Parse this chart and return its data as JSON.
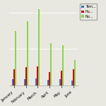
{
  "categories": [
    "January",
    "February",
    "March",
    "April",
    "May",
    "June"
  ],
  "series": [
    {
      "label": "Tem...",
      "color": "#4472c4",
      "values": [
        8,
        8,
        9,
        7,
        8,
        6
      ]
    },
    {
      "label": "Hu...",
      "color": "#cc0000",
      "values": [
        22,
        25,
        26,
        18,
        20,
        22
      ]
    },
    {
      "label": "Nu...",
      "color": "#92d050",
      "values": [
        75,
        88,
        105,
        58,
        55,
        35
      ]
    }
  ],
  "ylim": [
    0,
    115
  ],
  "background_color": "#e8e8e0",
  "plot_bg": "#e8e8e0",
  "grid_color": "#ffffff",
  "legend_fontsize": 3.5,
  "tick_fontsize": 3.8,
  "bar_width": 0.12
}
